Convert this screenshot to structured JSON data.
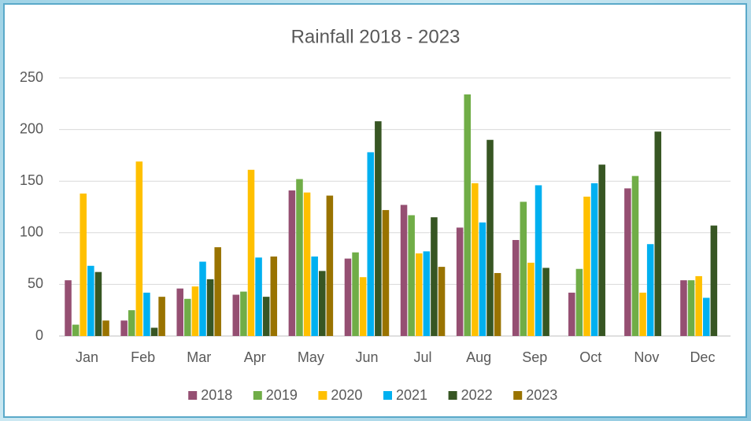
{
  "chart_data": {
    "type": "bar",
    "title": "Rainfall 2018 - 2023",
    "categories": [
      "Jan",
      "Feb",
      "Mar",
      "Apr",
      "May",
      "Jun",
      "Jul",
      "Aug",
      "Sep",
      "Oct",
      "Nov",
      "Dec"
    ],
    "series": [
      {
        "name": "2018",
        "color": "#954f72",
        "values": [
          54,
          15,
          46,
          40,
          141,
          75,
          127,
          105,
          93,
          42,
          143,
          54
        ]
      },
      {
        "name": "2019",
        "color": "#70ad47",
        "values": [
          11,
          25,
          36,
          43,
          152,
          81,
          117,
          234,
          130,
          65,
          155,
          54
        ]
      },
      {
        "name": "2020",
        "color": "#ffc000",
        "values": [
          138,
          169,
          48,
          161,
          139,
          57,
          80,
          148,
          71,
          135,
          42,
          58
        ]
      },
      {
        "name": "2021",
        "color": "#00b0f0",
        "values": [
          68,
          42,
          72,
          76,
          77,
          178,
          82,
          110,
          146,
          148,
          89,
          37
        ]
      },
      {
        "name": "2022",
        "color": "#375623",
        "values": [
          62,
          8,
          55,
          38,
          63,
          208,
          115,
          190,
          66,
          166,
          198,
          107
        ]
      },
      {
        "name": "2023",
        "color": "#997300",
        "values": [
          15,
          38,
          86,
          77,
          136,
          122,
          67,
          61,
          null,
          null,
          null,
          null
        ]
      }
    ],
    "ylim": [
      0,
      250
    ],
    "yticks": [
      0,
      50,
      100,
      150,
      200,
      250
    ],
    "grid": true,
    "legend": "bottom"
  }
}
